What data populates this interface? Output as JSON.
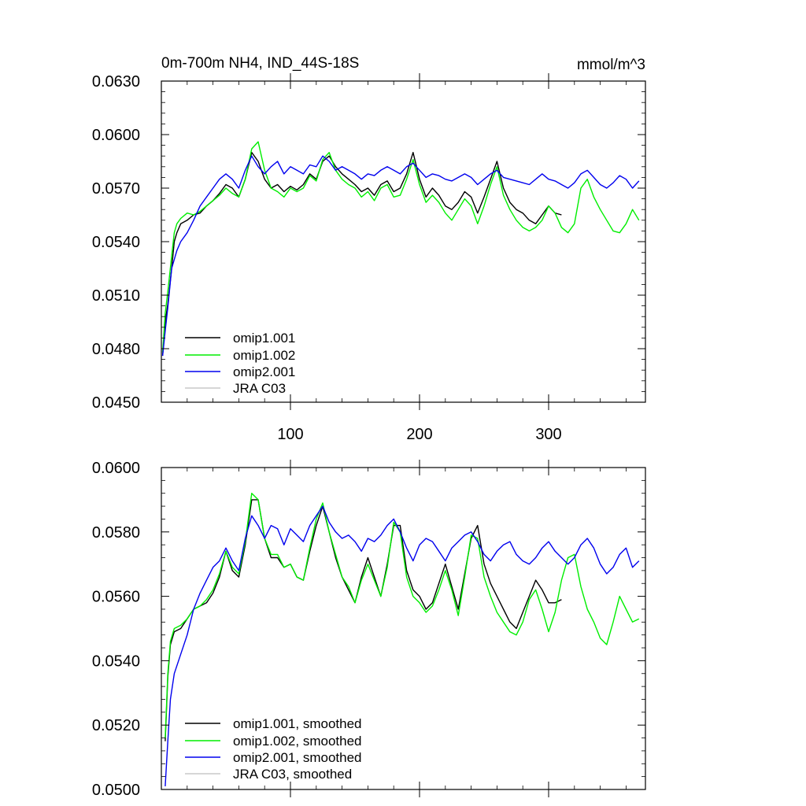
{
  "chart_data": [
    {
      "type": "line",
      "title": "0m-700m NH4, IND_44S-18S",
      "units": "mmol/m^3",
      "xlabel": "",
      "ylabel": "",
      "xlim": [
        0,
        375
      ],
      "ylim": [
        0.045,
        0.063
      ],
      "yticks": [
        "0.0450",
        "0.0480",
        "0.0510",
        "0.0540",
        "0.0570",
        "0.0600",
        "0.0630"
      ],
      "xticks": [
        "100",
        "200",
        "300"
      ],
      "legend_position": "bottom-left",
      "legend": [
        "omip1.001",
        "omip1.002",
        "omip2.001",
        "JRA C03"
      ],
      "series": [
        {
          "name": "omip1.001",
          "color": "#000000",
          "x": [
            1,
            3,
            5,
            8,
            10,
            12,
            15,
            20,
            25,
            30,
            35,
            40,
            45,
            50,
            55,
            60,
            65,
            70,
            75,
            80,
            85,
            90,
            95,
            100,
            105,
            110,
            115,
            120,
            125,
            130,
            135,
            140,
            145,
            150,
            155,
            160,
            165,
            170,
            175,
            180,
            185,
            190,
            195,
            200,
            205,
            210,
            215,
            220,
            225,
            230,
            235,
            240,
            245,
            250,
            255,
            260,
            265,
            270,
            275,
            280,
            285,
            290,
            295,
            300,
            305,
            310
          ],
          "values": [
            0.0476,
            0.0495,
            0.0505,
            0.0525,
            0.054,
            0.0545,
            0.055,
            0.0552,
            0.0555,
            0.0556,
            0.056,
            0.0563,
            0.0567,
            0.0572,
            0.057,
            0.0565,
            0.0575,
            0.059,
            0.0585,
            0.0575,
            0.057,
            0.0572,
            0.0568,
            0.0571,
            0.0569,
            0.0572,
            0.0578,
            0.0575,
            0.0585,
            0.0588,
            0.0582,
            0.0578,
            0.0575,
            0.0572,
            0.0568,
            0.057,
            0.0566,
            0.0572,
            0.0574,
            0.0568,
            0.057,
            0.0578,
            0.059,
            0.0575,
            0.0565,
            0.057,
            0.0566,
            0.056,
            0.0558,
            0.0562,
            0.0568,
            0.0565,
            0.0556,
            0.0565,
            0.0575,
            0.0585,
            0.057,
            0.0562,
            0.0558,
            0.0556,
            0.0552,
            0.055,
            0.0555,
            0.056,
            0.0556,
            0.0555
          ]
        },
        {
          "name": "omip1.002",
          "color": "#00ee00",
          "x": [
            1,
            3,
            5,
            8,
            10,
            12,
            15,
            20,
            25,
            30,
            35,
            40,
            45,
            50,
            55,
            60,
            65,
            70,
            75,
            80,
            85,
            90,
            95,
            100,
            105,
            110,
            115,
            120,
            125,
            130,
            135,
            140,
            145,
            150,
            155,
            160,
            165,
            170,
            175,
            180,
            185,
            190,
            195,
            200,
            205,
            210,
            215,
            220,
            225,
            230,
            235,
            240,
            245,
            250,
            255,
            260,
            265,
            270,
            275,
            280,
            285,
            290,
            295,
            300,
            305,
            310,
            315,
            320,
            325,
            330,
            335,
            340,
            345,
            350,
            355,
            360,
            365,
            370
          ],
          "values": [
            0.0478,
            0.05,
            0.0512,
            0.0532,
            0.0545,
            0.055,
            0.0553,
            0.0556,
            0.0555,
            0.0557,
            0.056,
            0.0563,
            0.0566,
            0.057,
            0.0567,
            0.0565,
            0.0575,
            0.0592,
            0.0596,
            0.058,
            0.057,
            0.0568,
            0.0565,
            0.057,
            0.0568,
            0.057,
            0.0577,
            0.0574,
            0.0586,
            0.059,
            0.058,
            0.0575,
            0.0572,
            0.057,
            0.0565,
            0.0568,
            0.0563,
            0.057,
            0.0572,
            0.0565,
            0.0566,
            0.0575,
            0.0586,
            0.0572,
            0.0562,
            0.0566,
            0.0562,
            0.0556,
            0.0552,
            0.0558,
            0.0564,
            0.056,
            0.055,
            0.056,
            0.0572,
            0.0582,
            0.0566,
            0.0558,
            0.0552,
            0.0548,
            0.0546,
            0.0548,
            0.0552,
            0.056,
            0.0556,
            0.0548,
            0.0545,
            0.055,
            0.057,
            0.0575,
            0.0565,
            0.0558,
            0.0552,
            0.0546,
            0.0545,
            0.055,
            0.0558,
            0.0552
          ]
        },
        {
          "name": "omip2.001",
          "color": "#0000ee",
          "x": [
            1,
            3,
            5,
            8,
            10,
            12,
            15,
            20,
            25,
            30,
            35,
            40,
            45,
            50,
            55,
            60,
            65,
            70,
            75,
            80,
            85,
            90,
            95,
            100,
            105,
            110,
            115,
            120,
            125,
            130,
            135,
            140,
            145,
            150,
            155,
            160,
            165,
            170,
            175,
            180,
            185,
            190,
            195,
            200,
            205,
            210,
            215,
            220,
            225,
            230,
            235,
            240,
            245,
            250,
            255,
            260,
            265,
            270,
            275,
            280,
            285,
            290,
            295,
            300,
            305,
            310,
            315,
            320,
            325,
            330,
            335,
            340,
            345,
            350,
            355,
            360,
            365,
            370
          ],
          "values": [
            0.0476,
            0.049,
            0.0503,
            0.0525,
            0.053,
            0.0535,
            0.054,
            0.0545,
            0.0552,
            0.056,
            0.0565,
            0.057,
            0.0575,
            0.0578,
            0.0575,
            0.057,
            0.058,
            0.0588,
            0.0582,
            0.0578,
            0.0582,
            0.0585,
            0.0578,
            0.0582,
            0.058,
            0.0578,
            0.0583,
            0.0582,
            0.0588,
            0.0585,
            0.058,
            0.0582,
            0.058,
            0.0578,
            0.0575,
            0.0578,
            0.0577,
            0.058,
            0.0582,
            0.058,
            0.0578,
            0.0582,
            0.0584,
            0.058,
            0.0576,
            0.0578,
            0.0577,
            0.0575,
            0.0574,
            0.0576,
            0.0578,
            0.0576,
            0.0572,
            0.0575,
            0.0578,
            0.058,
            0.0576,
            0.0575,
            0.0574,
            0.0573,
            0.0572,
            0.0575,
            0.0578,
            0.0575,
            0.0574,
            0.0572,
            0.057,
            0.0573,
            0.0578,
            0.058,
            0.0576,
            0.0572,
            0.057,
            0.0573,
            0.0577,
            0.0575,
            0.057,
            0.0574
          ]
        },
        {
          "name": "JRA C03",
          "color": "#c8c8c8",
          "x": [],
          "values": []
        }
      ]
    },
    {
      "type": "line",
      "title": "",
      "xlabel": "",
      "ylabel": "",
      "xlim": [
        0,
        375
      ],
      "ylim": [
        0.05,
        0.06
      ],
      "yticks": [
        "0.0500",
        "0.0520",
        "0.0540",
        "0.0560",
        "0.0580",
        "0.0600"
      ],
      "xticks": [],
      "legend_position": "bottom-left",
      "legend": [
        "omip1.001, smoothed",
        "omip1.002, smoothed",
        "omip2.001, smoothed",
        "JRA C03, smoothed"
      ],
      "series": [
        {
          "name": "omip1.001, smoothed",
          "color": "#000000",
          "x": [
            3,
            5,
            7,
            10,
            15,
            20,
            25,
            30,
            35,
            40,
            45,
            50,
            55,
            60,
            65,
            70,
            75,
            80,
            85,
            90,
            95,
            100,
            105,
            110,
            115,
            120,
            125,
            130,
            135,
            140,
            145,
            150,
            155,
            160,
            165,
            170,
            175,
            180,
            185,
            190,
            195,
            200,
            205,
            210,
            215,
            220,
            225,
            230,
            235,
            240,
            245,
            250,
            255,
            260,
            265,
            270,
            275,
            280,
            285,
            290,
            295,
            300,
            305,
            310
          ],
          "values": [
            0.0515,
            0.0535,
            0.0545,
            0.0549,
            0.055,
            0.0553,
            0.0556,
            0.0557,
            0.0558,
            0.0561,
            0.0566,
            0.0574,
            0.0568,
            0.0566,
            0.0576,
            0.059,
            0.059,
            0.0578,
            0.0572,
            0.0572,
            0.0569,
            0.057,
            0.0566,
            0.0565,
            0.0574,
            0.0582,
            0.0588,
            0.058,
            0.0572,
            0.0566,
            0.0562,
            0.0558,
            0.0566,
            0.0572,
            0.0566,
            0.056,
            0.057,
            0.0582,
            0.0582,
            0.0568,
            0.0562,
            0.056,
            0.0556,
            0.0558,
            0.0564,
            0.057,
            0.0563,
            0.0556,
            0.0567,
            0.0578,
            0.0582,
            0.057,
            0.0564,
            0.056,
            0.0556,
            0.0552,
            0.055,
            0.0555,
            0.056,
            0.0565,
            0.0562,
            0.0558,
            0.0558,
            0.0559
          ]
        },
        {
          "name": "omip1.002, smoothed",
          "color": "#00ee00",
          "x": [
            3,
            5,
            7,
            10,
            15,
            20,
            25,
            30,
            35,
            40,
            45,
            50,
            55,
            60,
            65,
            70,
            75,
            80,
            85,
            90,
            95,
            100,
            105,
            110,
            115,
            120,
            125,
            130,
            135,
            140,
            145,
            150,
            155,
            160,
            165,
            170,
            175,
            180,
            185,
            190,
            195,
            200,
            205,
            210,
            215,
            220,
            225,
            230,
            235,
            240,
            245,
            250,
            255,
            260,
            265,
            270,
            275,
            280,
            285,
            290,
            295,
            300,
            305,
            310,
            315,
            320,
            325,
            330,
            335,
            340,
            345,
            350,
            355,
            360,
            365,
            370
          ],
          "values": [
            0.0516,
            0.0536,
            0.0546,
            0.055,
            0.0551,
            0.0553,
            0.0556,
            0.0557,
            0.0559,
            0.0562,
            0.0567,
            0.0574,
            0.0569,
            0.0567,
            0.0577,
            0.0592,
            0.059,
            0.0578,
            0.0573,
            0.0573,
            0.0569,
            0.057,
            0.0566,
            0.0565,
            0.0575,
            0.0584,
            0.0589,
            0.058,
            0.0573,
            0.0566,
            0.0563,
            0.0558,
            0.0565,
            0.057,
            0.0565,
            0.056,
            0.0569,
            0.0583,
            0.058,
            0.0566,
            0.056,
            0.0558,
            0.0555,
            0.0557,
            0.0562,
            0.0568,
            0.0562,
            0.0554,
            0.0566,
            0.0579,
            0.0578,
            0.0566,
            0.056,
            0.0555,
            0.0552,
            0.0549,
            0.0548,
            0.0552,
            0.0559,
            0.0562,
            0.0556,
            0.0549,
            0.0555,
            0.0565,
            0.0572,
            0.0573,
            0.0563,
            0.0556,
            0.0552,
            0.0547,
            0.0545,
            0.0552,
            0.056,
            0.0556,
            0.0552,
            0.0553
          ]
        },
        {
          "name": "omip2.001, smoothed",
          "color": "#0000ee",
          "x": [
            3,
            5,
            7,
            10,
            15,
            20,
            25,
            30,
            35,
            40,
            45,
            50,
            55,
            60,
            65,
            70,
            75,
            80,
            85,
            90,
            95,
            100,
            105,
            110,
            115,
            120,
            125,
            130,
            135,
            140,
            145,
            150,
            155,
            160,
            165,
            170,
            175,
            180,
            185,
            190,
            195,
            200,
            205,
            210,
            215,
            220,
            225,
            230,
            235,
            240,
            245,
            250,
            255,
            260,
            265,
            270,
            275,
            280,
            285,
            290,
            295,
            300,
            305,
            310,
            315,
            320,
            325,
            330,
            335,
            340,
            345,
            350,
            355,
            360,
            365,
            370
          ],
          "values": [
            0.0501,
            0.0515,
            0.0528,
            0.0536,
            0.0542,
            0.0548,
            0.0556,
            0.0561,
            0.0565,
            0.0569,
            0.0571,
            0.0575,
            0.0571,
            0.0568,
            0.0578,
            0.0585,
            0.0582,
            0.0578,
            0.0582,
            0.0581,
            0.0576,
            0.0581,
            0.0579,
            0.0577,
            0.0582,
            0.0585,
            0.0588,
            0.0583,
            0.058,
            0.0578,
            0.0579,
            0.0577,
            0.0574,
            0.0578,
            0.0577,
            0.0579,
            0.0582,
            0.0584,
            0.058,
            0.0575,
            0.0571,
            0.0576,
            0.0578,
            0.0577,
            0.0574,
            0.0571,
            0.0575,
            0.0577,
            0.0579,
            0.058,
            0.0577,
            0.0573,
            0.0571,
            0.0574,
            0.0576,
            0.0577,
            0.0573,
            0.0571,
            0.057,
            0.0572,
            0.0575,
            0.0577,
            0.0574,
            0.0572,
            0.057,
            0.0572,
            0.0576,
            0.0578,
            0.0575,
            0.057,
            0.0567,
            0.0569,
            0.0573,
            0.0575,
            0.0569,
            0.0571
          ]
        },
        {
          "name": "JRA C03, smoothed",
          "color": "#c8c8c8",
          "x": [],
          "values": []
        }
      ]
    }
  ]
}
